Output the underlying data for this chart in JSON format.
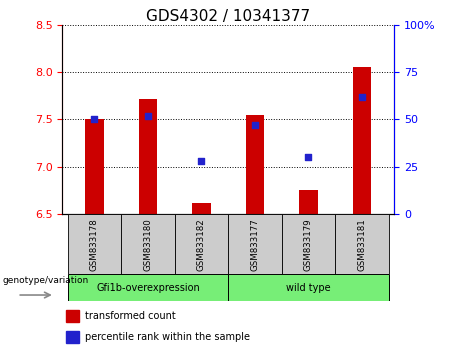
{
  "title": "GDS4302 / 10341377",
  "samples": [
    "GSM833178",
    "GSM833180",
    "GSM833182",
    "GSM833177",
    "GSM833179",
    "GSM833181"
  ],
  "group_labels": [
    "Gfi1b-overexpression",
    "wild type"
  ],
  "bar_values": [
    7.5,
    7.72,
    6.62,
    7.55,
    6.75,
    8.05
  ],
  "bar_base": 6.5,
  "percentile_values": [
    50,
    52,
    28,
    47,
    30,
    62
  ],
  "ylim_left": [
    6.5,
    8.5
  ],
  "ylim_right": [
    0,
    100
  ],
  "yticks_left": [
    6.5,
    7.0,
    7.5,
    8.0,
    8.5
  ],
  "yticks_right": [
    0,
    25,
    50,
    75,
    100
  ],
  "bar_color": "#cc0000",
  "marker_color": "#2222cc",
  "group_bg_color": "#77ee77",
  "sample_bg_color": "#cccccc",
  "legend_bar_label": "transformed count",
  "legend_marker_label": "percentile rank within the sample",
  "genotype_label": "genotype/variation",
  "title_fontsize": 11,
  "tick_fontsize": 8,
  "bar_width": 0.35
}
